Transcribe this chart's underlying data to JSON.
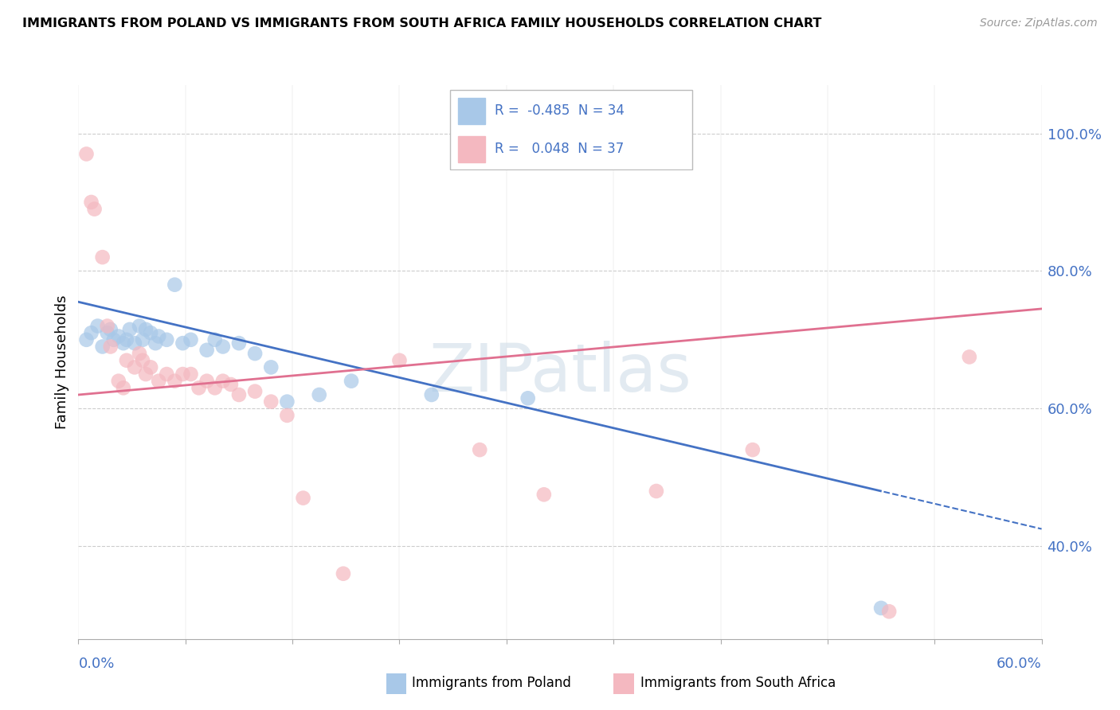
{
  "title": "IMMIGRANTS FROM POLAND VS IMMIGRANTS FROM SOUTH AFRICA FAMILY HOUSEHOLDS CORRELATION CHART",
  "source": "Source: ZipAtlas.com",
  "ylabel": "Family Households",
  "ytick_vals": [
    0.4,
    0.6,
    0.8,
    1.0
  ],
  "ytick_labels": [
    "40.0%",
    "60.0%",
    "80.0%",
    "100.0%"
  ],
  "xlim": [
    0.0,
    0.6
  ],
  "ylim": [
    0.265,
    1.07
  ],
  "blue_color": "#a8c8e8",
  "pink_color": "#f4b8c0",
  "blue_line_color": "#4472c4",
  "pink_line_color": "#e07090",
  "watermark": "ZIPatlas",
  "poland_x": [
    0.005,
    0.008,
    0.012,
    0.015,
    0.018,
    0.02,
    0.022,
    0.025,
    0.028,
    0.03,
    0.032,
    0.035,
    0.038,
    0.04,
    0.042,
    0.045,
    0.048,
    0.05,
    0.055,
    0.06,
    0.065,
    0.07,
    0.08,
    0.085,
    0.09,
    0.1,
    0.11,
    0.12,
    0.13,
    0.15,
    0.17,
    0.22,
    0.28,
    0.5
  ],
  "poland_y": [
    0.7,
    0.71,
    0.72,
    0.69,
    0.71,
    0.715,
    0.7,
    0.705,
    0.695,
    0.7,
    0.715,
    0.695,
    0.72,
    0.7,
    0.715,
    0.71,
    0.695,
    0.705,
    0.7,
    0.78,
    0.695,
    0.7,
    0.685,
    0.7,
    0.69,
    0.695,
    0.68,
    0.66,
    0.61,
    0.62,
    0.64,
    0.62,
    0.615,
    0.31
  ],
  "sa_x": [
    0.005,
    0.008,
    0.01,
    0.015,
    0.018,
    0.02,
    0.025,
    0.028,
    0.03,
    0.035,
    0.038,
    0.04,
    0.042,
    0.045,
    0.05,
    0.055,
    0.06,
    0.065,
    0.07,
    0.075,
    0.08,
    0.085,
    0.09,
    0.095,
    0.1,
    0.11,
    0.12,
    0.13,
    0.14,
    0.165,
    0.2,
    0.25,
    0.29,
    0.36,
    0.42,
    0.505,
    0.555
  ],
  "sa_y": [
    0.97,
    0.9,
    0.89,
    0.82,
    0.72,
    0.69,
    0.64,
    0.63,
    0.67,
    0.66,
    0.68,
    0.67,
    0.65,
    0.66,
    0.64,
    0.65,
    0.64,
    0.65,
    0.65,
    0.63,
    0.64,
    0.63,
    0.64,
    0.635,
    0.62,
    0.625,
    0.61,
    0.59,
    0.47,
    0.36,
    0.67,
    0.54,
    0.475,
    0.48,
    0.54,
    0.305,
    0.675
  ]
}
